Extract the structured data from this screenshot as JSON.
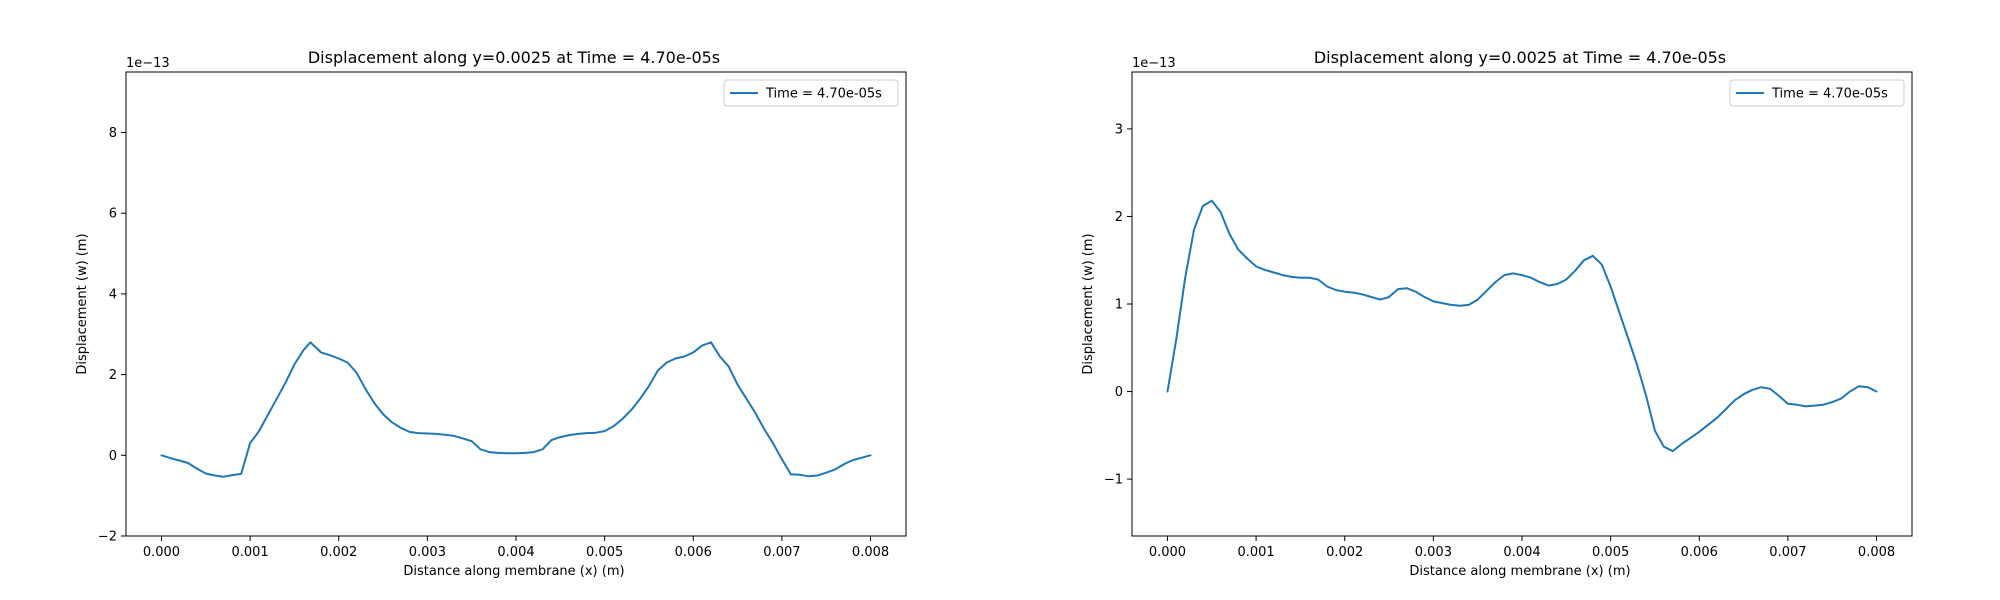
{
  "chart_data": [
    {
      "type": "line",
      "title": "Displacement along y=0.0025 at Time = 4.70e-05s",
      "xlabel": "Distance along membrane (x) (m)",
      "ylabel": "Displacement (w) (m)",
      "y_multiplier": "1e−13",
      "xlim": [
        -0.0004,
        0.0084
      ],
      "ylim": [
        -2,
        9.5
      ],
      "x_ticks": [
        0.0,
        0.001,
        0.002,
        0.003,
        0.004,
        0.005,
        0.006,
        0.007,
        0.008
      ],
      "x_tick_labels": [
        "0.000",
        "0.001",
        "0.002",
        "0.003",
        "0.004",
        "0.005",
        "0.006",
        "0.007",
        "0.008"
      ],
      "y_ticks": [
        -2,
        0,
        2,
        4,
        6,
        8
      ],
      "y_tick_labels": [
        "−2",
        "0",
        "2",
        "4",
        "6",
        "8"
      ],
      "legend_position": "top-right",
      "grid": false,
      "series": [
        {
          "name": "Time = 4.70e-05s",
          "color": "#1f77b4",
          "x": [
            0.0,
            0.0001,
            0.0002,
            0.0003,
            0.0004,
            0.0005,
            0.0006,
            0.0007,
            0.0008,
            0.0009,
            0.001,
            0.0011,
            0.0012,
            0.0013,
            0.0014,
            0.0015,
            0.0016,
            0.00168,
            0.0018,
            0.0019,
            0.002,
            0.0021,
            0.0022,
            0.0023,
            0.0024,
            0.0025,
            0.0026,
            0.0027,
            0.0028,
            0.0029,
            0.003,
            0.0031,
            0.0032,
            0.0033,
            0.0034,
            0.0035,
            0.0036,
            0.0037,
            0.0038,
            0.0039,
            0.004,
            0.0041,
            0.0042,
            0.0043,
            0.0044,
            0.0045,
            0.0046,
            0.0047,
            0.0048,
            0.0049,
            0.005,
            0.0051,
            0.0052,
            0.0053,
            0.0054,
            0.0055,
            0.0056,
            0.0057,
            0.0058,
            0.0059,
            0.006,
            0.0061,
            0.0062,
            0.0063,
            0.0064,
            0.0065,
            0.0066,
            0.0067,
            0.0068,
            0.0069,
            0.007,
            0.0071,
            0.0072,
            0.0073,
            0.0074,
            0.0075,
            0.0076,
            0.0077,
            0.0078,
            0.0079,
            0.008
          ],
          "y": [
            0.0,
            -0.07,
            -0.13,
            -0.19,
            -0.33,
            -0.45,
            -0.5,
            -0.53,
            -0.49,
            -0.46,
            0.3,
            0.6,
            1.0,
            1.4,
            1.8,
            2.25,
            2.6,
            2.8,
            2.55,
            2.48,
            2.4,
            2.3,
            2.05,
            1.65,
            1.3,
            1.02,
            0.82,
            0.68,
            0.58,
            0.55,
            0.54,
            0.53,
            0.51,
            0.48,
            0.42,
            0.35,
            0.15,
            0.08,
            0.06,
            0.05,
            0.05,
            0.06,
            0.08,
            0.15,
            0.38,
            0.45,
            0.5,
            0.53,
            0.55,
            0.56,
            0.6,
            0.72,
            0.9,
            1.12,
            1.4,
            1.72,
            2.1,
            2.3,
            2.4,
            2.45,
            2.55,
            2.72,
            2.8,
            2.45,
            2.2,
            1.75,
            1.4,
            1.05,
            0.65,
            0.3,
            -0.1,
            -0.47,
            -0.48,
            -0.52,
            -0.5,
            -0.43,
            -0.35,
            -0.22,
            -0.12,
            -0.06,
            0.0
          ]
        }
      ]
    },
    {
      "type": "line",
      "title": "Displacement along y=0.0025 at Time = 4.70e-05s",
      "xlabel": "Distance along membrane (x) (m)",
      "ylabel": "Displacement (w) (m)",
      "y_multiplier": "1e−13",
      "xlim": [
        -0.0004,
        0.0084
      ],
      "ylim": [
        -1.65,
        3.65
      ],
      "x_ticks": [
        0.0,
        0.001,
        0.002,
        0.003,
        0.004,
        0.005,
        0.006,
        0.007,
        0.008
      ],
      "x_tick_labels": [
        "0.000",
        "0.001",
        "0.002",
        "0.003",
        "0.004",
        "0.005",
        "0.006",
        "0.007",
        "0.008"
      ],
      "y_ticks": [
        -1,
        0,
        1,
        2,
        3
      ],
      "y_tick_labels": [
        "−1",
        "0",
        "1",
        "2",
        "3"
      ],
      "legend_position": "top-right",
      "grid": false,
      "series": [
        {
          "name": "Time = 4.70e-05s",
          "color": "#1f77b4",
          "x": [
            0.0,
            0.0001,
            0.0002,
            0.0003,
            0.0004,
            0.0005,
            0.0006,
            0.0007,
            0.0008,
            0.0009,
            0.001,
            0.0011,
            0.0012,
            0.0013,
            0.0014,
            0.0015,
            0.0016,
            0.0017,
            0.0018,
            0.0019,
            0.002,
            0.0021,
            0.0022,
            0.0023,
            0.0024,
            0.0025,
            0.0026,
            0.0027,
            0.0028,
            0.0029,
            0.003,
            0.0031,
            0.0032,
            0.0033,
            0.0034,
            0.0035,
            0.0036,
            0.0037,
            0.0038,
            0.0039,
            0.004,
            0.0041,
            0.0042,
            0.0043,
            0.0044,
            0.0045,
            0.0046,
            0.0047,
            0.0048,
            0.0049,
            0.005,
            0.0051,
            0.0052,
            0.0053,
            0.0054,
            0.0055,
            0.0056,
            0.0057,
            0.0058,
            0.0059,
            0.006,
            0.0061,
            0.0062,
            0.0063,
            0.0064,
            0.0065,
            0.0066,
            0.0067,
            0.0068,
            0.0069,
            0.007,
            0.0071,
            0.0072,
            0.0073,
            0.0074,
            0.0075,
            0.0076,
            0.0077,
            0.0078,
            0.0079,
            0.008
          ],
          "y": [
            0.0,
            0.6,
            1.3,
            1.85,
            2.12,
            2.18,
            2.05,
            1.8,
            1.62,
            1.52,
            1.43,
            1.39,
            1.36,
            1.33,
            1.31,
            1.3,
            1.3,
            1.28,
            1.2,
            1.16,
            1.14,
            1.13,
            1.11,
            1.08,
            1.05,
            1.08,
            1.17,
            1.18,
            1.14,
            1.08,
            1.03,
            1.01,
            0.99,
            0.98,
            0.99,
            1.05,
            1.15,
            1.25,
            1.33,
            1.35,
            1.33,
            1.3,
            1.25,
            1.21,
            1.23,
            1.28,
            1.38,
            1.5,
            1.55,
            1.45,
            1.2,
            0.9,
            0.6,
            0.3,
            -0.05,
            -0.45,
            -0.63,
            -0.68,
            -0.6,
            -0.53,
            -0.46,
            -0.38,
            -0.3,
            -0.2,
            -0.1,
            -0.03,
            0.02,
            0.05,
            0.03,
            -0.05,
            -0.14,
            -0.15,
            -0.17,
            -0.16,
            -0.15,
            -0.12,
            -0.08,
            0.0,
            0.06,
            0.05,
            0.0
          ]
        }
      ]
    }
  ]
}
